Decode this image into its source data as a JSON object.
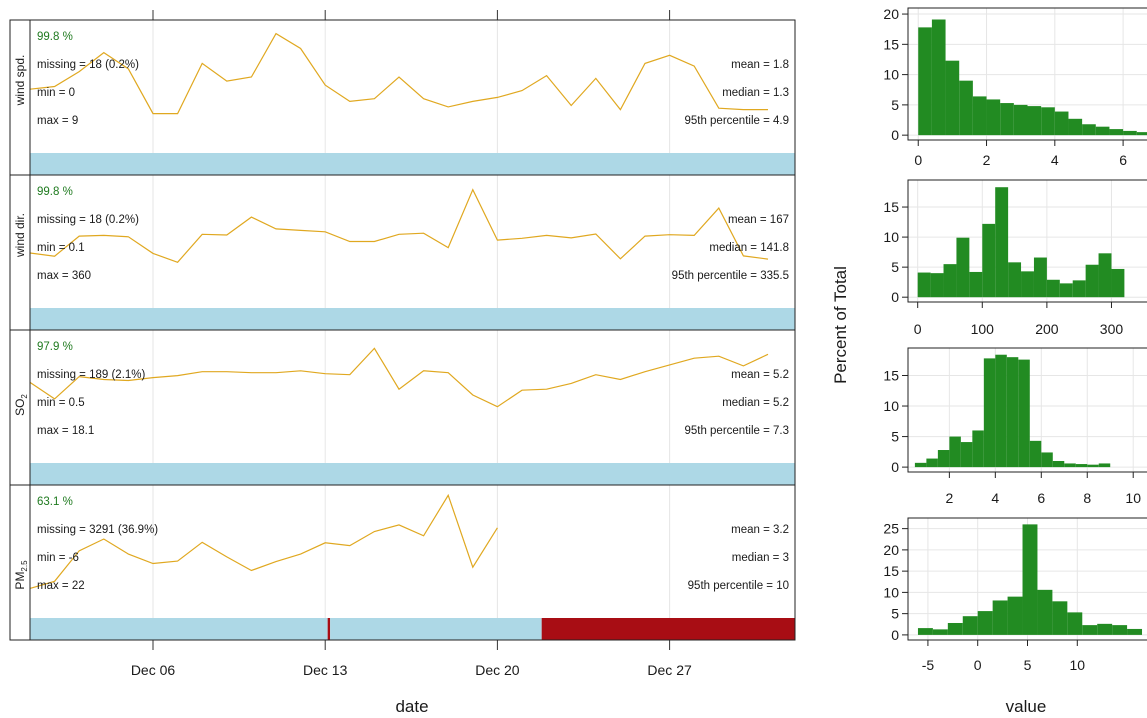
{
  "colors": {
    "line": "#E0A820",
    "coverage": "#ADD8E6",
    "missing": "#A80D14",
    "histogram": "#228B22",
    "grid": "#E6E6E6",
    "percent_text": "#1F7A1F"
  },
  "time_axis": {
    "xlabel": "date",
    "ticks": [
      "Dec 06",
      "Dec 13",
      "Dec 20",
      "Dec 27"
    ]
  },
  "hist_axis": {
    "xlabel": "value",
    "ylabel": "Percent of Total"
  },
  "chart_data": [
    {
      "type": "line",
      "variable": "wind spd.",
      "percent": "99.8 %",
      "missing": "missing = 18 (0.2%)",
      "min": "min = 0",
      "max": "max = 9",
      "mean": "mean = 1.8",
      "median": "median = 1.3",
      "p95": "95th percentile = 4.9",
      "x_day": [
        1,
        2,
        3,
        4,
        5,
        6,
        7,
        8,
        9,
        10,
        11,
        12,
        13,
        14,
        15,
        16,
        17,
        18,
        19,
        20,
        21,
        22,
        23,
        24,
        25,
        26,
        27,
        28,
        29,
        30,
        31,
        32
      ],
      "y": [
        2.9,
        3.1,
        4.2,
        5.6,
        4.4,
        1.1,
        1.1,
        4.8,
        3.5,
        3.8,
        7.0,
        5.9,
        3.2,
        2.0,
        2.2,
        3.8,
        2.2,
        1.6,
        2.0,
        2.3,
        2.8,
        3.9,
        1.7,
        3.7,
        1.4,
        4.8,
        5.4,
        4.6,
        1.5,
        1.4,
        1.4,
        null
      ],
      "ylim": [
        -1.8,
        8.0
      ],
      "coverage": [
        [
          1,
          32.7,
          "available"
        ]
      ]
    },
    {
      "type": "line",
      "variable": "wind dir.",
      "percent": "99.8 %",
      "missing": "missing = 18 (0.2%)",
      "min": "min = 0.1",
      "max": "max = 360",
      "mean": "mean = 167",
      "median": "median = 141.8",
      "p95": "95th percentile = 335.5",
      "x_day": [
        1,
        2,
        3,
        4,
        5,
        6,
        7,
        8,
        9,
        10,
        11,
        12,
        13,
        14,
        15,
        16,
        17,
        18,
        19,
        20,
        21,
        22,
        23,
        24,
        25,
        26,
        27,
        28,
        29,
        30,
        31,
        32
      ],
      "y": [
        123,
        114,
        170,
        172,
        168,
        122,
        97,
        175,
        173,
        223,
        190,
        186,
        182,
        155,
        155,
        175,
        178,
        138,
        299,
        159,
        164,
        172,
        165,
        176,
        107,
        170,
        174,
        172,
        248,
        115,
        106,
        null
      ],
      "ylim": [
        -30,
        340
      ],
      "coverage": [
        [
          1,
          32.7,
          "available"
        ]
      ]
    },
    {
      "type": "line",
      "variable": "SO2",
      "percent": "97.9 %",
      "missing": "missing = 189 (2.1%)",
      "min": "min = 0.5",
      "max": "max = 18.1",
      "mean": "mean = 5.2",
      "median": "median = 5.2",
      "p95": "95th percentile = 7.3",
      "x_day": [
        1,
        2,
        3,
        4,
        5,
        6,
        7,
        8,
        9,
        10,
        11,
        12,
        13,
        14,
        15,
        16,
        17,
        18,
        19,
        20,
        21,
        22,
        23,
        24,
        25,
        26,
        27,
        28,
        29,
        30,
        31,
        32
      ],
      "y": [
        6.1,
        4.4,
        6.7,
        6.4,
        6.3,
        6.6,
        6.8,
        7.2,
        7.2,
        7.1,
        7.1,
        7.3,
        7.0,
        6.9,
        9.6,
        5.4,
        7.3,
        7.1,
        4.8,
        3.6,
        5.3,
        5.4,
        6.0,
        6.9,
        6.4,
        7.2,
        7.9,
        8.6,
        8.8,
        7.8,
        9.0,
        null
      ],
      "ylim": [
        -2.2,
        11.5
      ],
      "coverage": [
        [
          1,
          32.7,
          "available"
        ]
      ]
    },
    {
      "type": "line",
      "variable": "PM2.5",
      "percent": "63.1 %",
      "missing": "missing = 3291 (36.9%)",
      "min": "min = -6",
      "max": "max = 22",
      "mean": "mean = 3.2",
      "median": "median = 3",
      "p95": "95th percentile = 10",
      "x_day": [
        1,
        2,
        3,
        4,
        5,
        6,
        7,
        8,
        9,
        10,
        11,
        12,
        13,
        14,
        15,
        16,
        17,
        18,
        19,
        20
      ],
      "y": [
        0.0,
        1.5,
        8.0,
        10.5,
        7.3,
        5.3,
        5.8,
        9.8,
        6.7,
        3.8,
        5.7,
        7.3,
        9.7,
        9.1,
        12.1,
        13.5,
        11.2,
        19.8,
        4.5,
        12.9
      ],
      "ylim": [
        -6.3,
        22.0
      ],
      "coverage": [
        [
          1,
          13.1,
          "available"
        ],
        [
          13.1,
          13.2,
          "missing"
        ],
        [
          13.2,
          21.8,
          "available"
        ],
        [
          21.8,
          32.7,
          "missing"
        ]
      ]
    },
    {
      "type": "bar",
      "variable": "wind spd. distribution",
      "bin_width": 0.4,
      "x_start": 0,
      "values": [
        17.8,
        19.1,
        12.3,
        9.0,
        6.4,
        5.9,
        5.3,
        5.0,
        4.8,
        4.6,
        3.9,
        2.7,
        1.8,
        1.4,
        1.0,
        0.7,
        0.5
      ],
      "xlim": [
        -0.3,
        6.7
      ],
      "xticks": [
        0,
        2,
        4,
        6
      ],
      "ylim": [
        -0.8,
        21
      ],
      "yticks": [
        0,
        5,
        10,
        15,
        20
      ]
    },
    {
      "type": "bar",
      "variable": "wind dir. distribution",
      "bin_width": 20,
      "x_start": 0,
      "values": [
        4.1,
        4.0,
        5.5,
        9.9,
        4.2,
        12.2,
        18.3,
        5.8,
        4.3,
        6.6,
        2.9,
        2.3,
        2.8,
        5.4,
        7.3,
        4.7
      ],
      "xlim": [
        -15,
        355
      ],
      "xticks": [
        0,
        100,
        200,
        300
      ],
      "ylim": [
        -0.8,
        19.5
      ],
      "yticks": [
        0,
        5,
        10,
        15
      ]
    },
    {
      "type": "bar",
      "variable": "SO2 distribution",
      "bin_width": 0.5,
      "x_start": 0.5,
      "values": [
        0.7,
        1.4,
        2.8,
        5.0,
        4.1,
        6.0,
        17.8,
        18.4,
        18.0,
        17.6,
        4.3,
        2.4,
        1.0,
        0.6,
        0.5,
        0.4,
        0.6
      ],
      "xlim": [
        0.2,
        10.6
      ],
      "xticks": [
        2,
        4,
        6,
        8,
        10
      ],
      "ylim": [
        -0.8,
        19.5
      ],
      "yticks": [
        0,
        5,
        10,
        15
      ]
    },
    {
      "type": "bar",
      "variable": "PM2.5 distribution",
      "bin_width": 1.5,
      "x_start": -6,
      "values": [
        1.6,
        1.3,
        2.8,
        4.4,
        5.6,
        8.1,
        9.0,
        26.0,
        10.6,
        7.9,
        5.3,
        2.3,
        2.6,
        2.3,
        1.4
      ],
      "xlim": [
        -7,
        17
      ],
      "xticks": [
        -5,
        0,
        5,
        10
      ],
      "ylim": [
        -1.2,
        27.5
      ],
      "yticks": [
        0,
        5,
        10,
        15,
        20,
        25
      ]
    }
  ]
}
